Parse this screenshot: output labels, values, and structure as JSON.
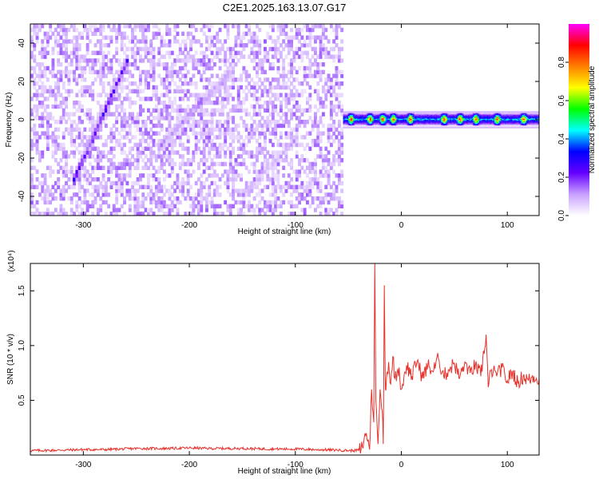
{
  "title": "C2E1.2025.163.13.07.G17",
  "chart_data": [
    {
      "type": "heatmap",
      "xlabel": "Height of straight line (km)",
      "ylabel": "Frequency (Hz)",
      "xlim": [
        -350,
        130
      ],
      "ylim": [
        -50,
        50
      ],
      "xticks": [
        -300,
        -200,
        -100,
        0,
        100
      ],
      "yticks": [
        -40,
        -20,
        0,
        20,
        40
      ],
      "colorbar": {
        "label": "Normalized spectral amplitude",
        "range": [
          0,
          1
        ],
        "ticks": [
          0.0,
          0.2,
          0.4,
          0.6,
          0.8
        ],
        "tick_labels": [
          "0.0",
          "0.2",
          "0.4",
          "0.6",
          "0.8"
        ],
        "colormap": [
          "#ffffff",
          "#c8a0ff",
          "#6600ff",
          "#0000ff",
          "#00ffff",
          "#00ff00",
          "#ffff00",
          "#ff8000",
          "#ff0000",
          "#ff00ff"
        ]
      },
      "features": {
        "noise_region_x": [
          -350,
          -55
        ],
        "diagonal_streaks": [
          {
            "x": [
              -310,
              -258
            ],
            "y": [
              -32,
              32
            ],
            "peak_amplitude": 0.3
          },
          {
            "x": [
              -230,
              -160
            ],
            "y": [
              -15,
              25
            ],
            "peak_amplitude": 0.15
          },
          {
            "x": [
              -150,
              -100
            ],
            "y": [
              -40,
              -10
            ],
            "peak_amplitude": 0.1
          }
        ],
        "carrier_band": {
          "x": [
            -55,
            130
          ],
          "frequency": 0,
          "width_hz": 6,
          "peak_amplitude": 0.95,
          "hot_spots": [
            -48,
            -30,
            -18,
            -8,
            8,
            40,
            55,
            70,
            90,
            115
          ]
        }
      }
    },
    {
      "type": "line",
      "xlabel": "Height of straight line (km)",
      "ylabel": "SNR (10 * v/v)",
      "exponent_label": "(x10⁴)",
      "xlim": [
        -350,
        130
      ],
      "ylim": [
        0,
        1.75
      ],
      "xticks": [
        -300,
        -200,
        -100,
        0,
        100
      ],
      "yticks": [
        0.5,
        1.0,
        1.5
      ],
      "ytick_labels": [
        "0.5",
        "1.0",
        "1.5"
      ],
      "series": [
        {
          "color": "#e8302a",
          "x": [
            -350,
            -320,
            -300,
            -280,
            -250,
            -220,
            -200,
            -180,
            -150,
            -120,
            -100,
            -80,
            -60,
            -45,
            -38,
            -33,
            -30,
            -28,
            -26,
            -25,
            -24,
            -22,
            -20,
            -18,
            -17,
            -16,
            -15,
            -14,
            -12,
            -10,
            -8,
            -6,
            -4,
            -2,
            0,
            5,
            10,
            15,
            20,
            25,
            30,
            35,
            40,
            45,
            50,
            55,
            60,
            65,
            70,
            75,
            80,
            82,
            85,
            90,
            95,
            100,
            105,
            110,
            115,
            120,
            125,
            130
          ],
          "y": [
            0.04,
            0.045,
            0.05,
            0.05,
            0.06,
            0.06,
            0.065,
            0.06,
            0.06,
            0.055,
            0.055,
            0.05,
            0.045,
            0.04,
            0.05,
            0.2,
            0.05,
            0.6,
            0.3,
            1.75,
            0.5,
            0.1,
            0.6,
            0.4,
            0.1,
            1.55,
            0.6,
            0.7,
            0.85,
            0.65,
            0.9,
            0.7,
            0.75,
            0.8,
            0.6,
            0.82,
            0.72,
            0.86,
            0.7,
            0.82,
            0.76,
            0.88,
            0.72,
            0.78,
            0.84,
            0.7,
            0.85,
            0.75,
            0.83,
            0.72,
            1.1,
            0.62,
            0.78,
            0.72,
            0.8,
            0.68,
            0.76,
            0.66,
            0.72,
            0.68,
            0.72,
            0.7
          ]
        }
      ]
    }
  ]
}
